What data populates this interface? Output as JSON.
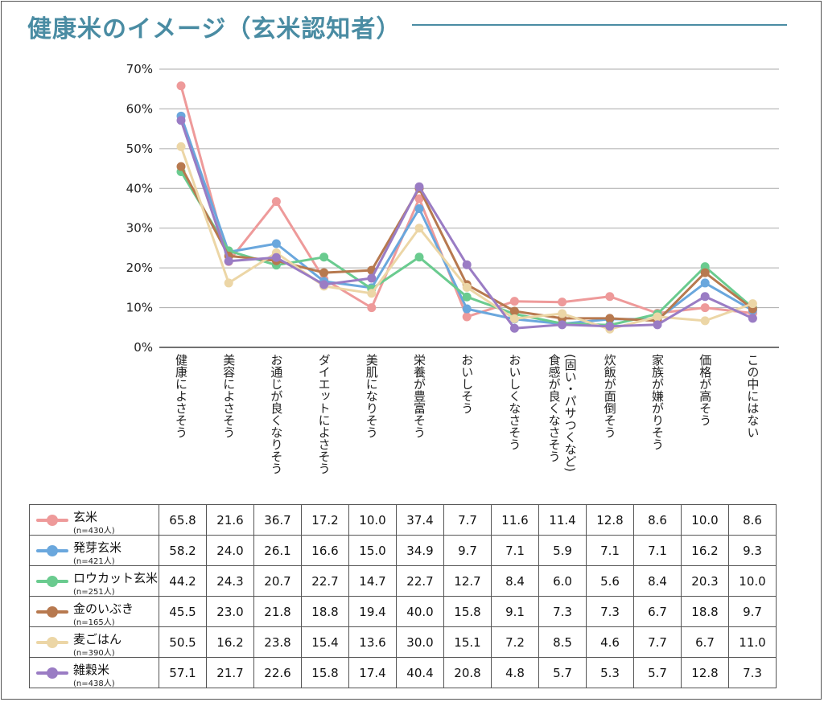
{
  "page": {
    "title": "健康米のイメージ（玄米認知者）"
  },
  "chart_data": {
    "type": "line",
    "title": "健康米のイメージ（玄米認知者）",
    "xlabel": "",
    "ylabel": "",
    "ylim": [
      0,
      70
    ],
    "yticks": [
      "0%",
      "10%",
      "20%",
      "30%",
      "40%",
      "50%",
      "60%",
      "70%"
    ],
    "grid": true,
    "legend_position": "table-below",
    "categories": [
      "健康によさそう",
      "美容によさそう",
      "お通じが良くなりそう",
      "ダイエットによさそう",
      "美肌になりそう",
      "栄養が豊富そう",
      "おいしそう",
      "おいしくなさそう",
      "食感が良くなさそう(固い・パサつくなど)",
      "炊飯が面倒そう",
      "家族が嫌がりそう",
      "価格が高そう",
      "この中にはない"
    ],
    "series": [
      {
        "name": "玄米",
        "n": "(n=430人)",
        "color": "#ee9a9a",
        "values": [
          65.8,
          21.6,
          36.7,
          17.2,
          10.0,
          37.4,
          7.7,
          11.6,
          11.4,
          12.8,
          8.6,
          10.0,
          8.6
        ]
      },
      {
        "name": "発芽玄米",
        "n": "(n=421人)",
        "color": "#6aa7dd",
        "values": [
          58.2,
          24.0,
          26.1,
          16.6,
          15.0,
          34.9,
          9.7,
          7.1,
          5.9,
          7.1,
          7.1,
          16.2,
          9.3
        ]
      },
      {
        "name": "ロウカット玄米",
        "n": "(n=251人)",
        "color": "#6acb8f",
        "values": [
          44.2,
          24.3,
          20.7,
          22.7,
          14.7,
          22.7,
          12.7,
          8.4,
          6.0,
          5.6,
          8.4,
          20.3,
          10.0
        ]
      },
      {
        "name": "金のいぶき",
        "n": "(n=165人)",
        "color": "#b7794f",
        "values": [
          45.5,
          23.0,
          21.8,
          18.8,
          19.4,
          40.0,
          15.8,
          9.1,
          7.3,
          7.3,
          6.7,
          18.8,
          9.7
        ]
      },
      {
        "name": "麦ごはん",
        "n": "(n=390人)",
        "color": "#ecd6a6",
        "values": [
          50.5,
          16.2,
          23.8,
          15.4,
          13.6,
          30.0,
          15.1,
          7.2,
          8.5,
          4.6,
          7.7,
          6.7,
          11.0
        ]
      },
      {
        "name": "雑穀米",
        "n": "(n=438人)",
        "color": "#9a7cc4",
        "values": [
          57.1,
          21.7,
          22.6,
          15.8,
          17.4,
          40.4,
          20.8,
          4.8,
          5.7,
          5.3,
          5.7,
          12.8,
          7.3
        ]
      }
    ],
    "table_values": [
      [
        "65.8",
        "21.6",
        "36.7",
        "17.2",
        "10.0",
        "37.4",
        "7.7",
        "11.6",
        "11.4",
        "12.8",
        "8.6",
        "10.0",
        "8.6"
      ],
      [
        "58.2",
        "24.0",
        "26.1",
        "16.6",
        "15.0",
        "34.9",
        "9.7",
        "7.1",
        "5.9",
        "7.1",
        "7.1",
        "16.2",
        "9.3"
      ],
      [
        "44.2",
        "24.3",
        "20.7",
        "22.7",
        "14.7",
        "22.7",
        "12.7",
        "8.4",
        "6.0",
        "5.6",
        "8.4",
        "20.3",
        "10.0"
      ],
      [
        "45.5",
        "23.0",
        "21.8",
        "18.8",
        "19.4",
        "40.0",
        "15.8",
        "9.1",
        "7.3",
        "7.3",
        "6.7",
        "18.8",
        "9.7"
      ],
      [
        "50.5",
        "16.2",
        "23.8",
        "15.4",
        "13.6",
        "30.0",
        "15.1",
        "7.2",
        "8.5",
        "4.6",
        "7.7",
        "6.7",
        "11.0"
      ],
      [
        "57.1",
        "21.7",
        "22.6",
        "15.8",
        "17.4",
        "40.4",
        "20.8",
        "4.8",
        "5.7",
        "5.3",
        "5.7",
        "12.8",
        "7.3"
      ]
    ]
  }
}
